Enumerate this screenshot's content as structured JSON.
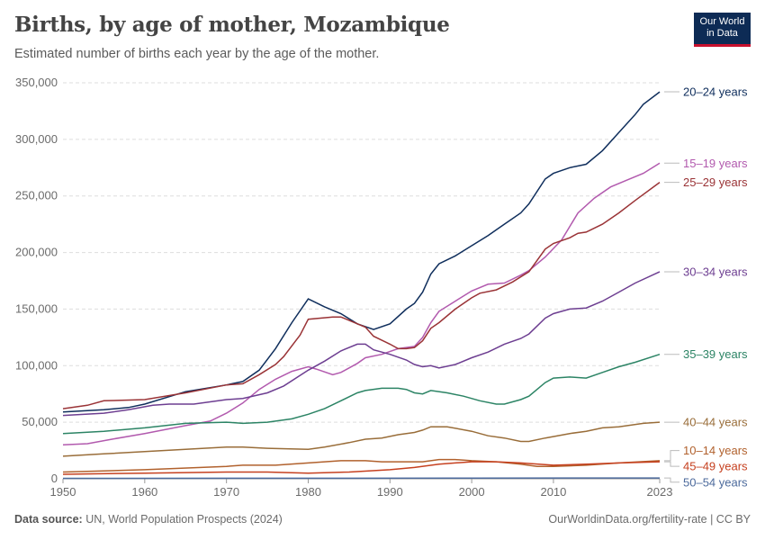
{
  "header": {
    "title": "Births, by age of mother, Mozambique",
    "subtitle": "Estimated number of births each year by the age of the mother.",
    "logo_line1": "Our World",
    "logo_line2": "in Data"
  },
  "footer": {
    "source_label": "Data source:",
    "source": "UN, World Population Prospects (2024)",
    "right": "OurWorldinData.org/fertility-rate | CC BY"
  },
  "chart_data": {
    "type": "line",
    "title": "Births, by age of mother, Mozambique",
    "xlim": [
      1950,
      2023
    ],
    "ylim": [
      0,
      350000
    ],
    "grid": "horizontal dashed",
    "legend": "right, end-of-line labels",
    "x_ticks": [
      "1950",
      "1960",
      "1970",
      "1980",
      "1990",
      "2000",
      "2010",
      "2023"
    ],
    "y_ticks": [
      "0",
      "50,000",
      "100,000",
      "150,000",
      "200,000",
      "250,000",
      "300,000",
      "350,000"
    ],
    "series": [
      {
        "name": "20–24 years",
        "color": "#0f2e5c",
        "points": [
          [
            1950,
            59000
          ],
          [
            1955,
            61000
          ],
          [
            1958,
            63000
          ],
          [
            1960,
            66000
          ],
          [
            1965,
            77000
          ],
          [
            1970,
            83000
          ],
          [
            1972,
            86000
          ],
          [
            1974,
            96000
          ],
          [
            1976,
            115000
          ],
          [
            1978,
            138000
          ],
          [
            1980,
            159000
          ],
          [
            1982,
            152000
          ],
          [
            1984,
            146000
          ],
          [
            1986,
            137000
          ],
          [
            1988,
            132000
          ],
          [
            1990,
            137000
          ],
          [
            1992,
            150000
          ],
          [
            1993,
            155000
          ],
          [
            1994,
            165000
          ],
          [
            1995,
            181000
          ],
          [
            1996,
            190000
          ],
          [
            1998,
            197000
          ],
          [
            2000,
            206000
          ],
          [
            2002,
            215000
          ],
          [
            2004,
            225000
          ],
          [
            2006,
            235000
          ],
          [
            2007,
            243000
          ],
          [
            2009,
            265000
          ],
          [
            2010,
            270000
          ],
          [
            2012,
            275000
          ],
          [
            2014,
            278000
          ],
          [
            2016,
            290000
          ],
          [
            2018,
            306000
          ],
          [
            2020,
            322000
          ],
          [
            2021,
            331000
          ],
          [
            2023,
            342000
          ]
        ]
      },
      {
        "name": "15–19 years",
        "color": "#b25aae",
        "points": [
          [
            1950,
            30000
          ],
          [
            1953,
            31000
          ],
          [
            1956,
            35000
          ],
          [
            1960,
            40000
          ],
          [
            1965,
            47000
          ],
          [
            1968,
            51000
          ],
          [
            1970,
            58000
          ],
          [
            1972,
            67000
          ],
          [
            1974,
            79000
          ],
          [
            1976,
            88000
          ],
          [
            1978,
            95000
          ],
          [
            1980,
            99000
          ],
          [
            1981,
            97000
          ],
          [
            1983,
            92000
          ],
          [
            1984,
            94000
          ],
          [
            1986,
            102000
          ],
          [
            1987,
            107000
          ],
          [
            1989,
            110000
          ],
          [
            1991,
            115000
          ],
          [
            1993,
            117000
          ],
          [
            1994,
            125000
          ],
          [
            1995,
            138000
          ],
          [
            1996,
            148000
          ],
          [
            1998,
            157000
          ],
          [
            2000,
            166000
          ],
          [
            2002,
            172000
          ],
          [
            2004,
            173000
          ],
          [
            2006,
            180000
          ],
          [
            2007,
            184000
          ],
          [
            2009,
            196000
          ],
          [
            2011,
            211000
          ],
          [
            2013,
            235000
          ],
          [
            2015,
            248000
          ],
          [
            2017,
            258000
          ],
          [
            2019,
            264000
          ],
          [
            2021,
            270000
          ],
          [
            2023,
            279000
          ]
        ]
      },
      {
        "name": "25–29 years",
        "color": "#9a3336",
        "points": [
          [
            1950,
            62000
          ],
          [
            1953,
            65000
          ],
          [
            1955,
            69000
          ],
          [
            1960,
            70000
          ],
          [
            1965,
            76000
          ],
          [
            1970,
            83000
          ],
          [
            1972,
            84000
          ],
          [
            1974,
            92000
          ],
          [
            1976,
            101000
          ],
          [
            1977,
            108000
          ],
          [
            1979,
            127000
          ],
          [
            1980,
            141000
          ],
          [
            1983,
            143000
          ],
          [
            1984,
            143000
          ],
          [
            1987,
            134000
          ],
          [
            1988,
            126000
          ],
          [
            1990,
            119000
          ],
          [
            1991,
            115000
          ],
          [
            1992,
            115000
          ],
          [
            1993,
            116000
          ],
          [
            1994,
            122000
          ],
          [
            1995,
            133000
          ],
          [
            1996,
            138000
          ],
          [
            1998,
            150000
          ],
          [
            2000,
            160000
          ],
          [
            2001,
            164000
          ],
          [
            2003,
            167000
          ],
          [
            2005,
            174000
          ],
          [
            2007,
            183000
          ],
          [
            2009,
            203000
          ],
          [
            2010,
            208000
          ],
          [
            2012,
            213000
          ],
          [
            2013,
            217000
          ],
          [
            2014,
            218000
          ],
          [
            2016,
            225000
          ],
          [
            2018,
            235000
          ],
          [
            2020,
            246000
          ],
          [
            2023,
            262000
          ]
        ]
      },
      {
        "name": "30–34 years",
        "color": "#6d3e91",
        "points": [
          [
            1950,
            56000
          ],
          [
            1955,
            58000
          ],
          [
            1958,
            61000
          ],
          [
            1961,
            65000
          ],
          [
            1963,
            66000
          ],
          [
            1966,
            66000
          ],
          [
            1970,
            70000
          ],
          [
            1972,
            71000
          ],
          [
            1975,
            76000
          ],
          [
            1977,
            82000
          ],
          [
            1980,
            96000
          ],
          [
            1982,
            104000
          ],
          [
            1984,
            113000
          ],
          [
            1986,
            119000
          ],
          [
            1987,
            119000
          ],
          [
            1988,
            114000
          ],
          [
            1990,
            110000
          ],
          [
            1992,
            105000
          ],
          [
            1993,
            101000
          ],
          [
            1994,
            99000
          ],
          [
            1995,
            100000
          ],
          [
            1996,
            98000
          ],
          [
            1998,
            101000
          ],
          [
            2000,
            107000
          ],
          [
            2002,
            112000
          ],
          [
            2004,
            119000
          ],
          [
            2006,
            124000
          ],
          [
            2007,
            128000
          ],
          [
            2009,
            142000
          ],
          [
            2010,
            146000
          ],
          [
            2012,
            150000
          ],
          [
            2014,
            151000
          ],
          [
            2016,
            157000
          ],
          [
            2018,
            165000
          ],
          [
            2020,
            173000
          ],
          [
            2023,
            183000
          ]
        ]
      },
      {
        "name": "35–39 years",
        "color": "#2c8465",
        "points": [
          [
            1950,
            40000
          ],
          [
            1955,
            42000
          ],
          [
            1960,
            45000
          ],
          [
            1965,
            49000
          ],
          [
            1970,
            50000
          ],
          [
            1972,
            49000
          ],
          [
            1975,
            50000
          ],
          [
            1978,
            53000
          ],
          [
            1980,
            57000
          ],
          [
            1982,
            62000
          ],
          [
            1984,
            69000
          ],
          [
            1986,
            76000
          ],
          [
            1987,
            78000
          ],
          [
            1989,
            80000
          ],
          [
            1991,
            80000
          ],
          [
            1992,
            79000
          ],
          [
            1993,
            76000
          ],
          [
            1994,
            75000
          ],
          [
            1995,
            78000
          ],
          [
            1997,
            76000
          ],
          [
            1999,
            73000
          ],
          [
            2001,
            69000
          ],
          [
            2003,
            66000
          ],
          [
            2004,
            66000
          ],
          [
            2006,
            70000
          ],
          [
            2007,
            73000
          ],
          [
            2009,
            85000
          ],
          [
            2010,
            89000
          ],
          [
            2012,
            90000
          ],
          [
            2014,
            89000
          ],
          [
            2016,
            94000
          ],
          [
            2018,
            99000
          ],
          [
            2020,
            103000
          ],
          [
            2023,
            110000
          ]
        ]
      },
      {
        "name": "40–44 years",
        "color": "#996d39",
        "points": [
          [
            1950,
            20000
          ],
          [
            1955,
            22000
          ],
          [
            1960,
            24000
          ],
          [
            1965,
            26000
          ],
          [
            1970,
            28000
          ],
          [
            1972,
            28000
          ],
          [
            1975,
            27000
          ],
          [
            1980,
            26000
          ],
          [
            1982,
            28000
          ],
          [
            1985,
            32000
          ],
          [
            1987,
            35000
          ],
          [
            1989,
            36000
          ],
          [
            1991,
            39000
          ],
          [
            1993,
            41000
          ],
          [
            1994,
            43000
          ],
          [
            1995,
            46000
          ],
          [
            1997,
            46000
          ],
          [
            2000,
            42000
          ],
          [
            2002,
            38000
          ],
          [
            2004,
            36000
          ],
          [
            2006,
            33000
          ],
          [
            2007,
            33000
          ],
          [
            2009,
            36000
          ],
          [
            2012,
            40000
          ],
          [
            2014,
            42000
          ],
          [
            2016,
            45000
          ],
          [
            2018,
            46000
          ],
          [
            2021,
            49000
          ],
          [
            2023,
            50000
          ]
        ]
      },
      {
        "name": "10–14 years",
        "color": "#b1612d",
        "points": [
          [
            1950,
            6000
          ],
          [
            1960,
            8000
          ],
          [
            1970,
            11000
          ],
          [
            1972,
            12000
          ],
          [
            1976,
            12000
          ],
          [
            1980,
            14000
          ],
          [
            1984,
            16000
          ],
          [
            1987,
            16000
          ],
          [
            1989,
            15000
          ],
          [
            1992,
            15000
          ],
          [
            1994,
            15000
          ],
          [
            1996,
            17000
          ],
          [
            1998,
            17000
          ],
          [
            2000,
            16000
          ],
          [
            2003,
            15000
          ],
          [
            2006,
            13000
          ],
          [
            2008,
            11000
          ],
          [
            2010,
            11000
          ],
          [
            2014,
            12000
          ],
          [
            2018,
            14000
          ],
          [
            2023,
            16000
          ]
        ]
      },
      {
        "name": "45–49 years",
        "color": "#c6401f",
        "points": [
          [
            1950,
            4000
          ],
          [
            1960,
            5000
          ],
          [
            1970,
            6000
          ],
          [
            1975,
            6000
          ],
          [
            1980,
            5000
          ],
          [
            1985,
            6000
          ],
          [
            1990,
            8000
          ],
          [
            1993,
            10000
          ],
          [
            1996,
            13000
          ],
          [
            2000,
            15000
          ],
          [
            2003,
            15000
          ],
          [
            2006,
            14000
          ],
          [
            2010,
            12000
          ],
          [
            2014,
            13000
          ],
          [
            2018,
            14000
          ],
          [
            2023,
            15000
          ]
        ]
      },
      {
        "name": "50–54 years",
        "color": "#4c6a9c",
        "points": [
          [
            1950,
            400
          ],
          [
            1980,
            500
          ],
          [
            2000,
            600
          ],
          [
            2023,
            700
          ]
        ]
      }
    ],
    "label_y": {
      "20–24 years": 342000,
      "15–19 years": 279000,
      "25–29 years": 262000,
      "30–34 years": 183000,
      "35–39 years": 110000,
      "40–44 years": 50000,
      "10–14 years": 25000,
      "45–49 years": 11000,
      "50–54 years": -3000
    }
  }
}
